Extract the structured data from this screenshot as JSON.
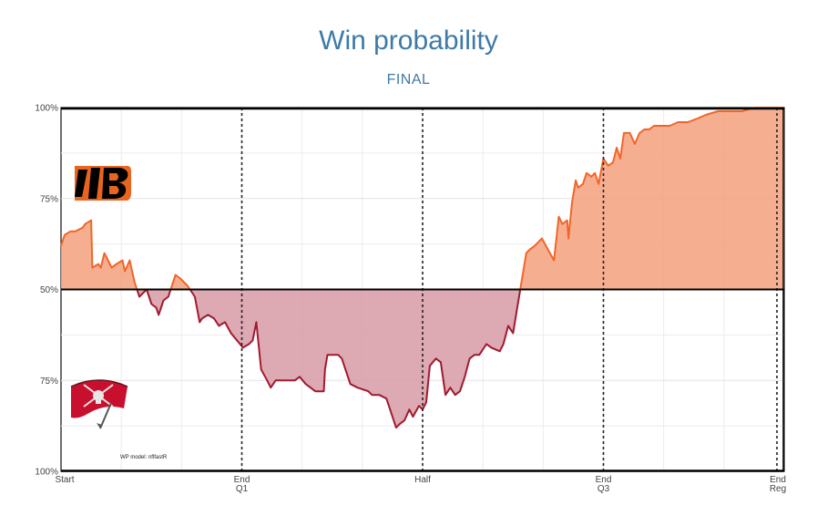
{
  "chart_data": {
    "type": "area",
    "title": "Win probability",
    "subtitle": "FINAL",
    "note": "WP model: nflfastR",
    "y_tick_labels": [
      "100%",
      "75%",
      "50%",
      "75%",
      "100%"
    ],
    "x_tick_labels": [
      {
        "x": 0,
        "lines": [
          "Start"
        ]
      },
      {
        "x": 15,
        "lines": [
          "End",
          "Q1"
        ]
      },
      {
        "x": 30,
        "lines": [
          "Half"
        ]
      },
      {
        "x": 45,
        "lines": [
          "End",
          "Q3"
        ]
      },
      {
        "x": 60,
        "lines": [
          "End",
          "Reg"
        ]
      }
    ],
    "xlim": [
      0,
      60
    ],
    "ylim": [
      0,
      1
    ],
    "x_unit": "game minutes",
    "baseline": 0.5,
    "quarter_lines": [
      15,
      30,
      45,
      60
    ],
    "series": [
      {
        "team_top": "Bengals",
        "team_bottom": "Buccaneers",
        "color_above": "#f5a07e",
        "line_above": "#f0662a",
        "color_below": "#d79aa4",
        "line_below": "#a11a30",
        "x": [
          0,
          0.3,
          0.8,
          1.2,
          1.8,
          2.0,
          2.5,
          2.6,
          3.1,
          3.3,
          3.6,
          4.2,
          4.6,
          5.1,
          5.3,
          5.7,
          6.1,
          6.5,
          7.1,
          7.5,
          7.9,
          8.1,
          8.5,
          8.9,
          9.5,
          9.9,
          10.5,
          11.1,
          11.5,
          11.7,
          12.2,
          12.7,
          13.1,
          13.6,
          14.1,
          14.6,
          15.1,
          15.6,
          15.9,
          16.2,
          16.6,
          17.1,
          17.4,
          17.8,
          18.6,
          19.4,
          19.8,
          20.3,
          21.1,
          21.8,
          21.9,
          22.1,
          23.0,
          23.3,
          24.0,
          24.6,
          25.5,
          25.8,
          26.4,
          27.0,
          27.4,
          27.8,
          28.1,
          28.5,
          28.9,
          29.2,
          29.7,
          30.0,
          30.3,
          30.6,
          31.1,
          31.5,
          31.9,
          32.3,
          32.7,
          33.1,
          33.5,
          33.9,
          34.3,
          34.7,
          35.3,
          35.7,
          36.4,
          36.7,
          37.1,
          37.5,
          38.1,
          38.6,
          38.9,
          39.3,
          39.9,
          40.9,
          41.3,
          41.6,
          42.0,
          42.1,
          42.4,
          42.7,
          42.9,
          43.3,
          43.6,
          44.0,
          44.3,
          44.6,
          45.0,
          45.4,
          45.8,
          46.1,
          46.4,
          46.7,
          47.2,
          47.6,
          48.0,
          48.4,
          48.8,
          49.2,
          49.8,
          50.5,
          51.2,
          52.0,
          52.8,
          53.5,
          54.5,
          55.5,
          56.5,
          57.5,
          58.2,
          59.0,
          60.0
        ],
        "y": [
          0.62,
          0.65,
          0.66,
          0.66,
          0.67,
          0.68,
          0.69,
          0.56,
          0.57,
          0.56,
          0.6,
          0.56,
          0.57,
          0.58,
          0.55,
          0.58,
          0.52,
          0.48,
          0.5,
          0.46,
          0.45,
          0.43,
          0.47,
          0.48,
          0.54,
          0.53,
          0.51,
          0.48,
          0.41,
          0.42,
          0.43,
          0.42,
          0.4,
          0.41,
          0.38,
          0.36,
          0.34,
          0.35,
          0.36,
          0.41,
          0.28,
          0.25,
          0.23,
          0.25,
          0.25,
          0.25,
          0.26,
          0.24,
          0.22,
          0.22,
          0.28,
          0.32,
          0.32,
          0.31,
          0.24,
          0.23,
          0.22,
          0.21,
          0.21,
          0.2,
          0.16,
          0.12,
          0.13,
          0.14,
          0.17,
          0.15,
          0.18,
          0.17,
          0.19,
          0.29,
          0.31,
          0.3,
          0.21,
          0.23,
          0.21,
          0.22,
          0.26,
          0.31,
          0.32,
          0.32,
          0.35,
          0.34,
          0.33,
          0.35,
          0.4,
          0.38,
          0.5,
          0.6,
          0.61,
          0.62,
          0.64,
          0.58,
          0.7,
          0.68,
          0.69,
          0.64,
          0.74,
          0.8,
          0.78,
          0.79,
          0.82,
          0.81,
          0.82,
          0.79,
          0.86,
          0.84,
          0.85,
          0.89,
          0.86,
          0.93,
          0.93,
          0.9,
          0.93,
          0.94,
          0.94,
          0.95,
          0.95,
          0.95,
          0.96,
          0.96,
          0.97,
          0.98,
          0.99,
          0.99,
          0.99,
          1.0,
          1.0,
          1.0,
          1.0
        ]
      }
    ],
    "grid": true
  }
}
